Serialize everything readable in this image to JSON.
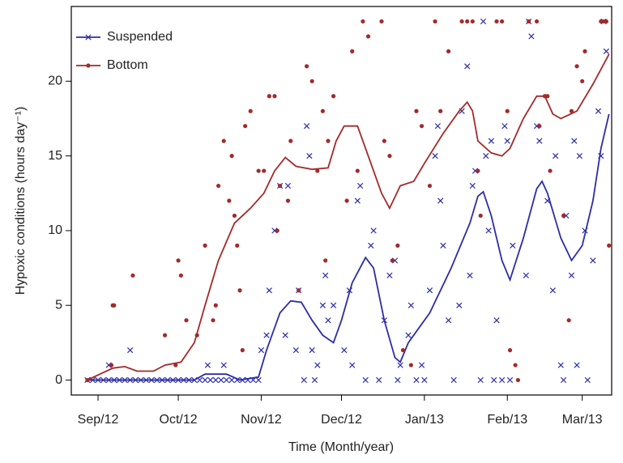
{
  "chart_data": {
    "type": "scatter",
    "x_label": "Time (Month/year)",
    "y_label": "Hypoxic conditions  (hours day⁻¹)",
    "xlim": [
      -10,
      192
    ],
    "ylim": [
      -1,
      25
    ],
    "xticks": [
      {
        "value": 0,
        "label": "Sep/12"
      },
      {
        "value": 30,
        "label": "Oct/12"
      },
      {
        "value": 61,
        "label": "Nov/12"
      },
      {
        "value": 91,
        "label": "Dec/12"
      },
      {
        "value": 122,
        "label": "Jan/13"
      },
      {
        "value": 153,
        "label": "Feb/13"
      },
      {
        "value": 181,
        "label": "Mar/13"
      }
    ],
    "yticks": [
      0,
      5,
      10,
      15,
      20
    ],
    "legend": "upper left",
    "series": [
      {
        "name": "Suspended",
        "color": "#2c2ca8",
        "marker": "x",
        "x": [
          -4,
          -2,
          0,
          2,
          4,
          6,
          8,
          10,
          12,
          14,
          16,
          18,
          20,
          22,
          24,
          26,
          28,
          30,
          32,
          34,
          36,
          38,
          40,
          42,
          44,
          46,
          48,
          50,
          52,
          54,
          56,
          58,
          60,
          4,
          12,
          41,
          47,
          61,
          63,
          64,
          66,
          68,
          71,
          70,
          74,
          75,
          77,
          78,
          79,
          80,
          81,
          82,
          84,
          85,
          86,
          88,
          92,
          94,
          95,
          97,
          98,
          100,
          102,
          103,
          105,
          107,
          109,
          111,
          112,
          113,
          116,
          117,
          119,
          121,
          122,
          124,
          126,
          127,
          128,
          129,
          131,
          133,
          135,
          136,
          138,
          139,
          140,
          141,
          143,
          144,
          145,
          146,
          147,
          148,
          149,
          151,
          152,
          153,
          154,
          155,
          160,
          161,
          162,
          164,
          165,
          168,
          170,
          171,
          173,
          174,
          175,
          177,
          178,
          179,
          180,
          182,
          183,
          185,
          187,
          188,
          189,
          190
        ],
        "values": [
          0,
          0,
          0,
          0,
          0,
          0,
          0,
          0,
          0,
          0,
          0,
          0,
          0,
          0,
          0,
          0,
          0,
          0,
          0,
          0,
          0,
          0,
          0,
          0,
          0,
          0,
          0,
          0,
          0,
          0,
          0,
          0,
          0,
          1,
          2,
          1,
          1,
          2,
          3,
          6,
          10,
          13,
          13,
          3,
          2,
          6,
          0,
          17,
          15,
          2,
          0,
          1,
          5,
          7,
          4,
          5,
          2,
          6,
          1,
          12,
          13,
          0,
          9,
          10,
          0,
          4,
          7,
          8,
          0,
          1,
          3,
          5,
          0,
          1,
          0,
          6,
          15,
          17,
          12,
          9,
          4,
          0,
          5,
          18,
          21,
          7,
          13,
          14,
          0,
          24,
          15,
          10,
          16,
          0,
          4,
          0,
          17,
          16,
          0,
          9,
          7,
          24,
          23,
          17,
          16,
          12,
          6,
          15,
          1,
          0,
          11,
          7,
          16,
          1,
          15,
          10,
          0,
          8,
          18,
          15,
          24,
          22
        ],
        "trend": {
          "x": [
            -4,
            36,
            40,
            48,
            53,
            60,
            63,
            68,
            72,
            76,
            80,
            84,
            88,
            91,
            95,
            100,
            103,
            107,
            111,
            113,
            116,
            124,
            132,
            139,
            142,
            144,
            147,
            151,
            154,
            159,
            164,
            166,
            168,
            173,
            177,
            181,
            185,
            188,
            191
          ],
          "values": [
            0,
            0,
            0.4,
            0.4,
            0,
            0.2,
            2,
            4.5,
            5.3,
            5.2,
            4,
            3,
            2.5,
            4,
            6.5,
            8.2,
            7.5,
            4,
            1.5,
            1.2,
            2.5,
            4.5,
            7.5,
            10.5,
            12.3,
            12.6,
            11,
            8,
            6.7,
            9.5,
            12.8,
            13.3,
            12.5,
            9.5,
            8,
            9,
            12,
            15.5,
            17.8
          ]
        }
      },
      {
        "name": "Bottom",
        "color": "#a32a2a",
        "marker": "o",
        "x": [
          -4,
          5,
          5.5,
          6,
          13,
          25,
          29,
          30,
          31,
          33,
          37,
          40,
          43,
          44,
          45,
          47,
          49,
          50,
          51,
          52,
          53,
          54,
          55,
          57,
          60,
          62,
          64,
          66,
          67,
          68,
          71,
          72,
          75,
          78,
          80,
          82,
          84,
          85,
          86,
          88,
          93,
          95,
          97,
          99,
          101,
          106,
          107,
          109,
          110,
          112,
          114,
          117,
          119,
          121,
          124,
          126,
          128,
          131,
          136,
          138,
          140,
          142,
          143,
          149,
          151,
          153,
          154,
          156,
          157,
          161,
          164,
          165,
          167,
          168,
          169,
          174,
          176,
          177,
          179,
          181,
          182,
          188,
          189,
          190,
          191
        ],
        "values": [
          0,
          1,
          5,
          5,
          7,
          3,
          1,
          8,
          7,
          4,
          3,
          9,
          4,
          5,
          13,
          16,
          12,
          15,
          11,
          9,
          6,
          2,
          17,
          18,
          14,
          14,
          19,
          19,
          10,
          13,
          12,
          16,
          6,
          21,
          20,
          14,
          18,
          8,
          16,
          19,
          12,
          22,
          14,
          24,
          23,
          24,
          16,
          15,
          8,
          9,
          2,
          1,
          18,
          17,
          13,
          24,
          18,
          22,
          24,
          24,
          24,
          14,
          11,
          24,
          24,
          18,
          2,
          1,
          0,
          24,
          24,
          17,
          19,
          19,
          14,
          11,
          4,
          18,
          21,
          20,
          22,
          24,
          24,
          24,
          9
        ],
        "trend": {
          "x": [
            -4,
            5.5,
            10,
            14.6,
            20.7,
            25,
            31,
            36,
            40,
            45,
            51,
            57,
            62,
            66,
            70,
            74,
            80,
            86,
            89,
            92,
            97,
            101,
            106,
            109,
            113,
            118,
            122,
            129,
            135,
            138,
            140,
            142,
            147,
            151,
            154,
            159,
            164,
            167,
            170,
            173,
            179,
            185,
            191
          ],
          "values": [
            0,
            0.8,
            0.9,
            0.6,
            0.6,
            1,
            1.2,
            2.5,
            5,
            8,
            10.5,
            11.5,
            12.5,
            14,
            14.9,
            14.3,
            14.1,
            14.2,
            16,
            17,
            17,
            15,
            12.5,
            11.5,
            13,
            13.3,
            14.5,
            16.5,
            18,
            18.6,
            18,
            16,
            15.2,
            15,
            15.5,
            17.5,
            19,
            19,
            17.8,
            17.5,
            18,
            19.8,
            21.8
          ]
        }
      }
    ]
  }
}
